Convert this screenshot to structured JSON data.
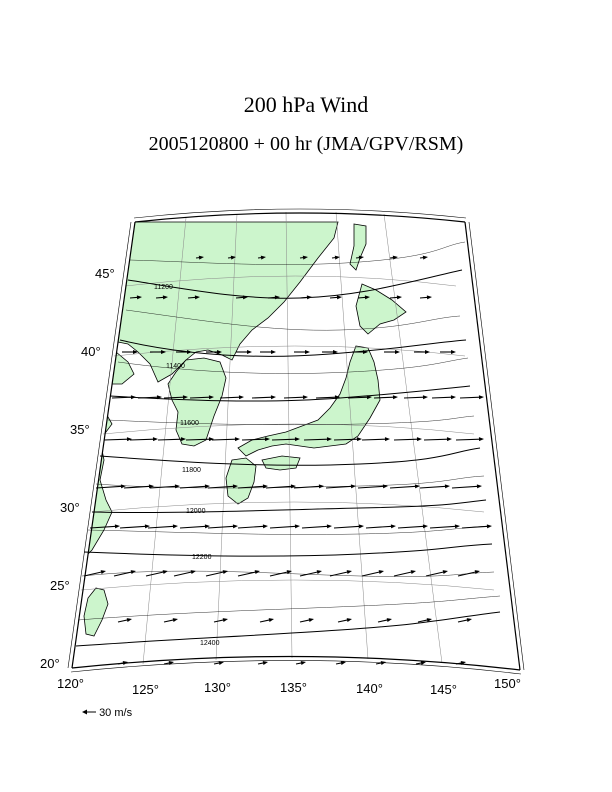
{
  "title": "200 hPa Wind",
  "subtitle": "2005120800 + 00 hr (JMA/GPV/RSM)",
  "colors": {
    "land": "#ccf5cc",
    "contour": "#000000",
    "grid": "#888888",
    "background": "#ffffff"
  },
  "map": {
    "lon_labels": [
      "120°",
      "125°",
      "130°",
      "135°",
      "140°",
      "145°",
      "150°"
    ],
    "lat_labels": [
      "20°",
      "25°",
      "30°",
      "35°",
      "40°",
      "45°"
    ]
  },
  "contour_labels": [
    "11200",
    "11400",
    "11600",
    "11800",
    "12000",
    "12200",
    "12400"
  ],
  "legend": {
    "arrow_icon": "left-arrow-icon",
    "text": "30 m/s"
  }
}
